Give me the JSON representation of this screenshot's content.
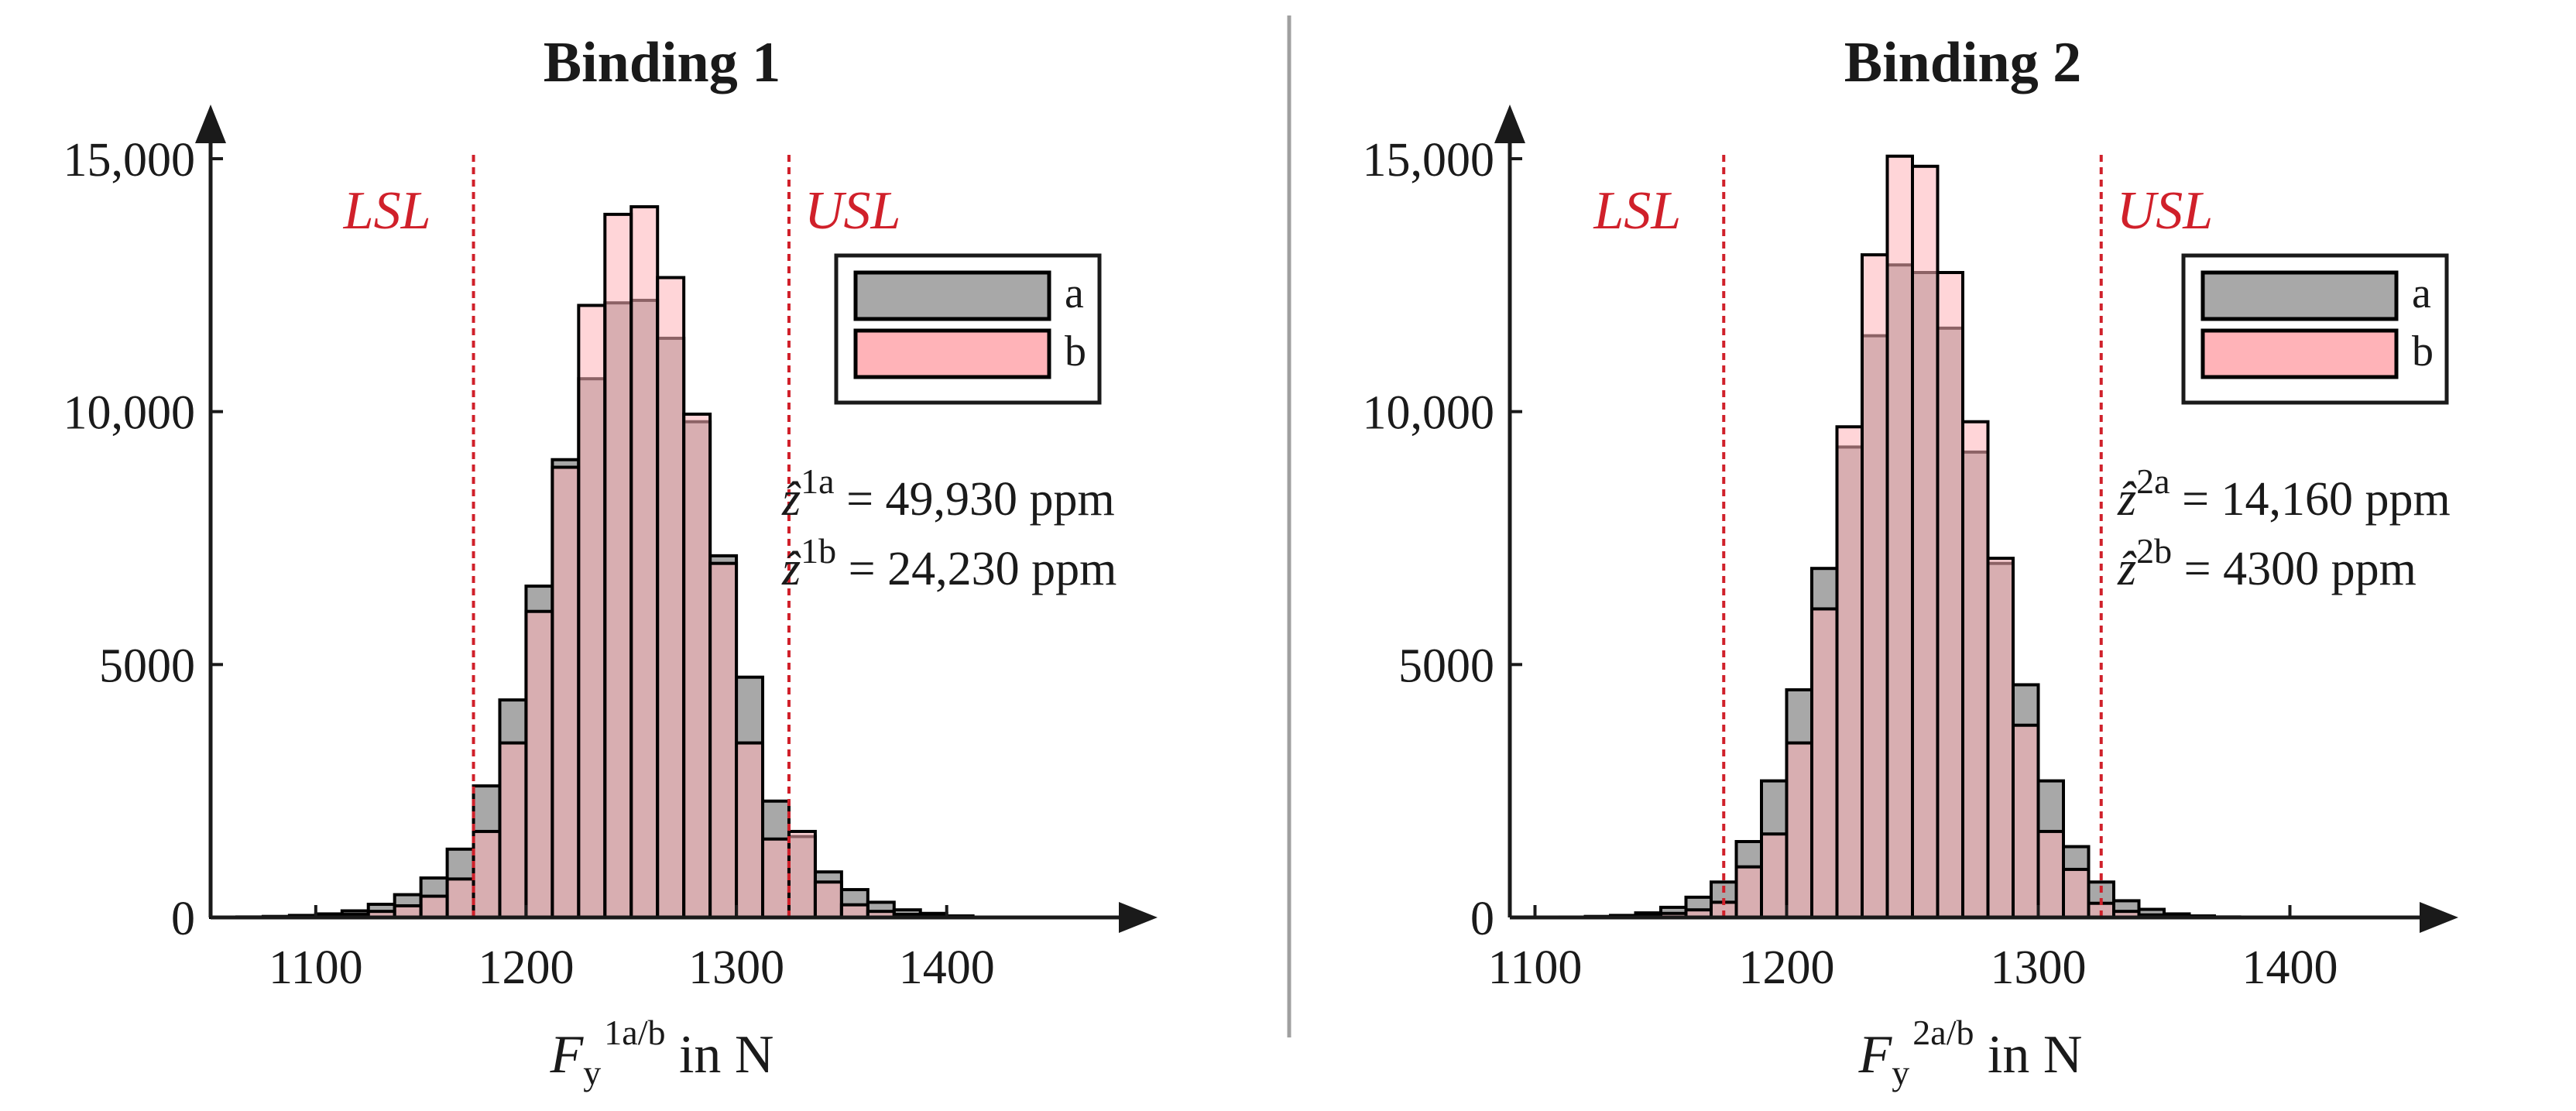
{
  "chart_data": [
    {
      "type": "bar",
      "title": "Binding 1",
      "xlabel": {
        "main": "F",
        "sub": "y",
        "sup": "1a/b",
        "suffix": " in N"
      },
      "xlim": [
        1050,
        1480
      ],
      "ylim": [
        0,
        15000
      ],
      "xticks": [
        1100,
        1200,
        1300,
        1400
      ],
      "yticks": [
        0,
        5000,
        10000,
        15000
      ],
      "xtick_labels": [
        "1100",
        "1200",
        "1300",
        "1400"
      ],
      "ytick_labels": [
        "0",
        "5000",
        "10,000",
        "15,000"
      ],
      "bin_width": 12.5,
      "bin_centers": [
        1056.25,
        1068.75,
        1081.25,
        1093.75,
        1106.25,
        1118.75,
        1131.25,
        1143.75,
        1156.25,
        1168.75,
        1181.25,
        1193.75,
        1206.25,
        1218.75,
        1231.25,
        1243.75,
        1256.25,
        1268.75,
        1281.25,
        1293.75,
        1306.25,
        1318.75,
        1331.25,
        1343.75,
        1356.25,
        1368.75,
        1381.25,
        1393.75,
        1406.25
      ],
      "series": [
        {
          "name": "a",
          "color": "#a8a8a8",
          "values": [
            5,
            10,
            20,
            40,
            70,
            130,
            260,
            450,
            780,
            1350,
            2600,
            4300,
            6550,
            9050,
            10650,
            12150,
            12200,
            11450,
            9800,
            7150,
            4750,
            2300,
            1600,
            900,
            550,
            300,
            150,
            80,
            30
          ]
        },
        {
          "name": "b",
          "color": "#ffb3b8",
          "values": [
            2,
            4,
            8,
            15,
            30,
            60,
            120,
            230,
            420,
            760,
            1700,
            3450,
            6050,
            8900,
            12100,
            13900,
            14050,
            12650,
            9950,
            7000,
            3450,
            1550,
            1700,
            700,
            250,
            120,
            60,
            25,
            10
          ]
        }
      ],
      "spec_limits": {
        "LSL": {
          "label": "LSL",
          "value": 1175
        },
        "USL": {
          "label": "USL",
          "value": 1325
        }
      },
      "annotations": [
        {
          "var": "ẑ",
          "sup": "1a",
          "eq": " = ",
          "value": "49,930 ppm"
        },
        {
          "var": "ẑ",
          "sup": "1b",
          "eq": " = ",
          "value": "24,230 ppm"
        }
      ],
      "legend": {
        "position": "top-right",
        "entries": [
          "a",
          "b"
        ]
      }
    },
    {
      "type": "bar",
      "title": "Binding 2",
      "xlabel": {
        "main": "F",
        "sub": "y",
        "sup": "2a/b",
        "suffix": "  in N"
      },
      "xlim": [
        1090,
        1450
      ],
      "ylim": [
        0,
        15000
      ],
      "xticks": [
        1100,
        1200,
        1300,
        1400
      ],
      "yticks": [
        0,
        5000,
        10000,
        15000
      ],
      "xtick_labels": [
        "1100",
        "1200",
        "1300",
        "1400"
      ],
      "ytick_labels": [
        "0",
        "5000",
        "10,000",
        "15,000"
      ],
      "bin_width": 10,
      "bin_centers": [
        1105,
        1115,
        1125,
        1135,
        1145,
        1155,
        1165,
        1175,
        1185,
        1195,
        1205,
        1215,
        1225,
        1235,
        1245,
        1255,
        1265,
        1275,
        1285,
        1295,
        1305,
        1315,
        1325,
        1335,
        1345,
        1355,
        1365,
        1375,
        1385,
        1395
      ],
      "series": [
        {
          "name": "a",
          "color": "#a8a8a8",
          "values": [
            5,
            8,
            20,
            40,
            90,
            200,
            400,
            700,
            1500,
            2700,
            4500,
            6900,
            9300,
            11500,
            12900,
            12750,
            11650,
            9200,
            7000,
            4600,
            2700,
            1400,
            700,
            330,
            160,
            70,
            30,
            10,
            5,
            2
          ]
        },
        {
          "name": "b",
          "color": "#ffb3b8",
          "values": [
            2,
            4,
            10,
            20,
            40,
            80,
            150,
            300,
            1000,
            1650,
            3450,
            6100,
            9700,
            13100,
            15050,
            14850,
            12750,
            9800,
            7100,
            3800,
            1700,
            950,
            280,
            120,
            50,
            20,
            10,
            5,
            2,
            1
          ]
        }
      ],
      "spec_limits": {
        "LSL": {
          "label": "LSL",
          "value": 1175
        },
        "USL": {
          "label": "USL",
          "value": 1325
        }
      },
      "annotations": [
        {
          "var": "ẑ",
          "sup": "2a",
          "eq": " = ",
          "value": "14,160 ppm"
        },
        {
          "var": "ẑ",
          "sup": "2b",
          "eq": " =    ",
          "value": "4300 ppm"
        }
      ],
      "legend": {
        "position": "top-right",
        "entries": [
          "a",
          "b"
        ]
      }
    }
  ],
  "colors": {
    "bar_edge": "#000000",
    "spec_line": "#d0202a",
    "divider": "#a0a0a0",
    "axis": "#1a1a1a"
  }
}
